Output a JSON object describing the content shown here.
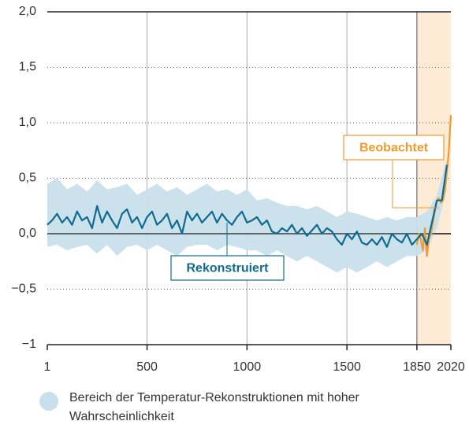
{
  "chart_data": {
    "type": "line",
    "xlim": [
      1,
      2020
    ],
    "xticks": [
      1,
      500,
      1000,
      1500,
      1850,
      2020
    ],
    "ylim": [
      -1,
      2
    ],
    "yticks": [
      {
        "value": -1,
        "label": "−1"
      },
      {
        "value": -0.5,
        "label": "−0,5"
      },
      {
        "value": 0,
        "label": "0,0"
      },
      {
        "value": 0.5,
        "label": "0,5"
      },
      {
        "value": 1,
        "label": "1,0"
      },
      {
        "value": 1.5,
        "label": "1,5"
      },
      {
        "value": 2,
        "label": "2,0"
      }
    ],
    "grid": true,
    "shade_span": {
      "x": [
        1850,
        2020
      ],
      "color": "#fdebd5"
    },
    "band": {
      "name": "Bereich der Temperatur-Rekonstruktionen mit hoher Wahrscheinlichkeit",
      "color": "#c8e0ec",
      "x": [
        1,
        50,
        100,
        150,
        200,
        250,
        300,
        350,
        400,
        450,
        500,
        550,
        600,
        650,
        700,
        750,
        800,
        850,
        900,
        950,
        1000,
        1050,
        1100,
        1150,
        1200,
        1250,
        1300,
        1350,
        1400,
        1450,
        1500,
        1550,
        1600,
        1650,
        1700,
        1750,
        1800,
        1850,
        1900,
        1950,
        2000
      ],
      "upper": [
        0.45,
        0.5,
        0.4,
        0.45,
        0.38,
        0.48,
        0.4,
        0.42,
        0.45,
        0.35,
        0.4,
        0.45,
        0.38,
        0.42,
        0.35,
        0.4,
        0.45,
        0.38,
        0.4,
        0.35,
        0.4,
        0.3,
        0.32,
        0.28,
        0.25,
        0.25,
        0.22,
        0.25,
        0.2,
        0.15,
        0.2,
        0.18,
        0.15,
        0.12,
        0.15,
        0.12,
        0.15,
        0.15,
        0.2,
        0.35,
        0.68
      ],
      "lower": [
        -0.12,
        -0.1,
        -0.15,
        -0.12,
        -0.1,
        -0.18,
        -0.1,
        -0.2,
        -0.12,
        -0.1,
        -0.15,
        -0.1,
        -0.15,
        -0.2,
        -0.12,
        -0.1,
        -0.1,
        -0.15,
        -0.1,
        -0.12,
        -0.15,
        -0.15,
        -0.2,
        -0.15,
        -0.2,
        -0.25,
        -0.2,
        -0.25,
        -0.3,
        -0.35,
        -0.3,
        -0.35,
        -0.3,
        -0.25,
        -0.3,
        -0.25,
        -0.2,
        -0.2,
        -0.15,
        0.05,
        0.4
      ]
    },
    "series": [
      {
        "name": "Rekonstruiert",
        "color": "#0f6b8e",
        "x": [
          1,
          25,
          50,
          75,
          100,
          125,
          150,
          175,
          200,
          225,
          250,
          275,
          300,
          325,
          350,
          375,
          400,
          425,
          450,
          475,
          500,
          525,
          550,
          575,
          600,
          625,
          650,
          675,
          700,
          725,
          750,
          775,
          800,
          825,
          850,
          875,
          900,
          925,
          950,
          975,
          1000,
          1025,
          1050,
          1075,
          1100,
          1125,
          1150,
          1175,
          1200,
          1225,
          1250,
          1275,
          1300,
          1325,
          1350,
          1375,
          1400,
          1425,
          1450,
          1475,
          1500,
          1525,
          1550,
          1575,
          1600,
          1625,
          1650,
          1675,
          1700,
          1725,
          1750,
          1775,
          1800,
          1825,
          1850,
          1875,
          1900,
          1925,
          1950,
          1975,
          2000
        ],
        "values": [
          0.08,
          0.12,
          0.18,
          0.1,
          0.15,
          0.08,
          0.2,
          0.12,
          0.15,
          0.05,
          0.25,
          0.1,
          0.2,
          0.12,
          0.05,
          0.18,
          0.22,
          0.1,
          0.15,
          0.05,
          0.15,
          0.2,
          0.08,
          0.12,
          0.18,
          0.05,
          0.12,
          0.0,
          0.2,
          0.12,
          0.18,
          0.1,
          0.15,
          0.2,
          0.1,
          0.18,
          0.12,
          0.08,
          0.15,
          0.2,
          0.1,
          0.12,
          0.15,
          0.08,
          0.12,
          0.02,
          0.0,
          0.05,
          0.02,
          0.08,
          0.0,
          0.05,
          -0.02,
          0.03,
          0.08,
          0.0,
          0.05,
          0.02,
          -0.05,
          -0.1,
          0.0,
          -0.05,
          0.02,
          -0.08,
          -0.1,
          -0.05,
          -0.1,
          -0.03,
          -0.12,
          0.0,
          -0.05,
          -0.08,
          0.0,
          -0.1,
          -0.05,
          0.0,
          -0.1,
          0.1,
          0.3,
          0.3,
          0.62
        ]
      },
      {
        "name": "Beobachtet",
        "color": "#f29a2e",
        "x": [
          1850,
          1860,
          1870,
          1880,
          1890,
          1900,
          1910,
          1920,
          1930,
          1940,
          1950,
          1960,
          1970,
          1980,
          1990,
          2000,
          2010,
          2020
        ],
        "values": [
          -0.1,
          0.0,
          -0.05,
          -0.15,
          0.05,
          -0.2,
          -0.05,
          0.0,
          0.1,
          0.2,
          0.3,
          0.32,
          0.28,
          0.3,
          0.4,
          0.55,
          0.75,
          1.07
        ]
      }
    ]
  }
}
